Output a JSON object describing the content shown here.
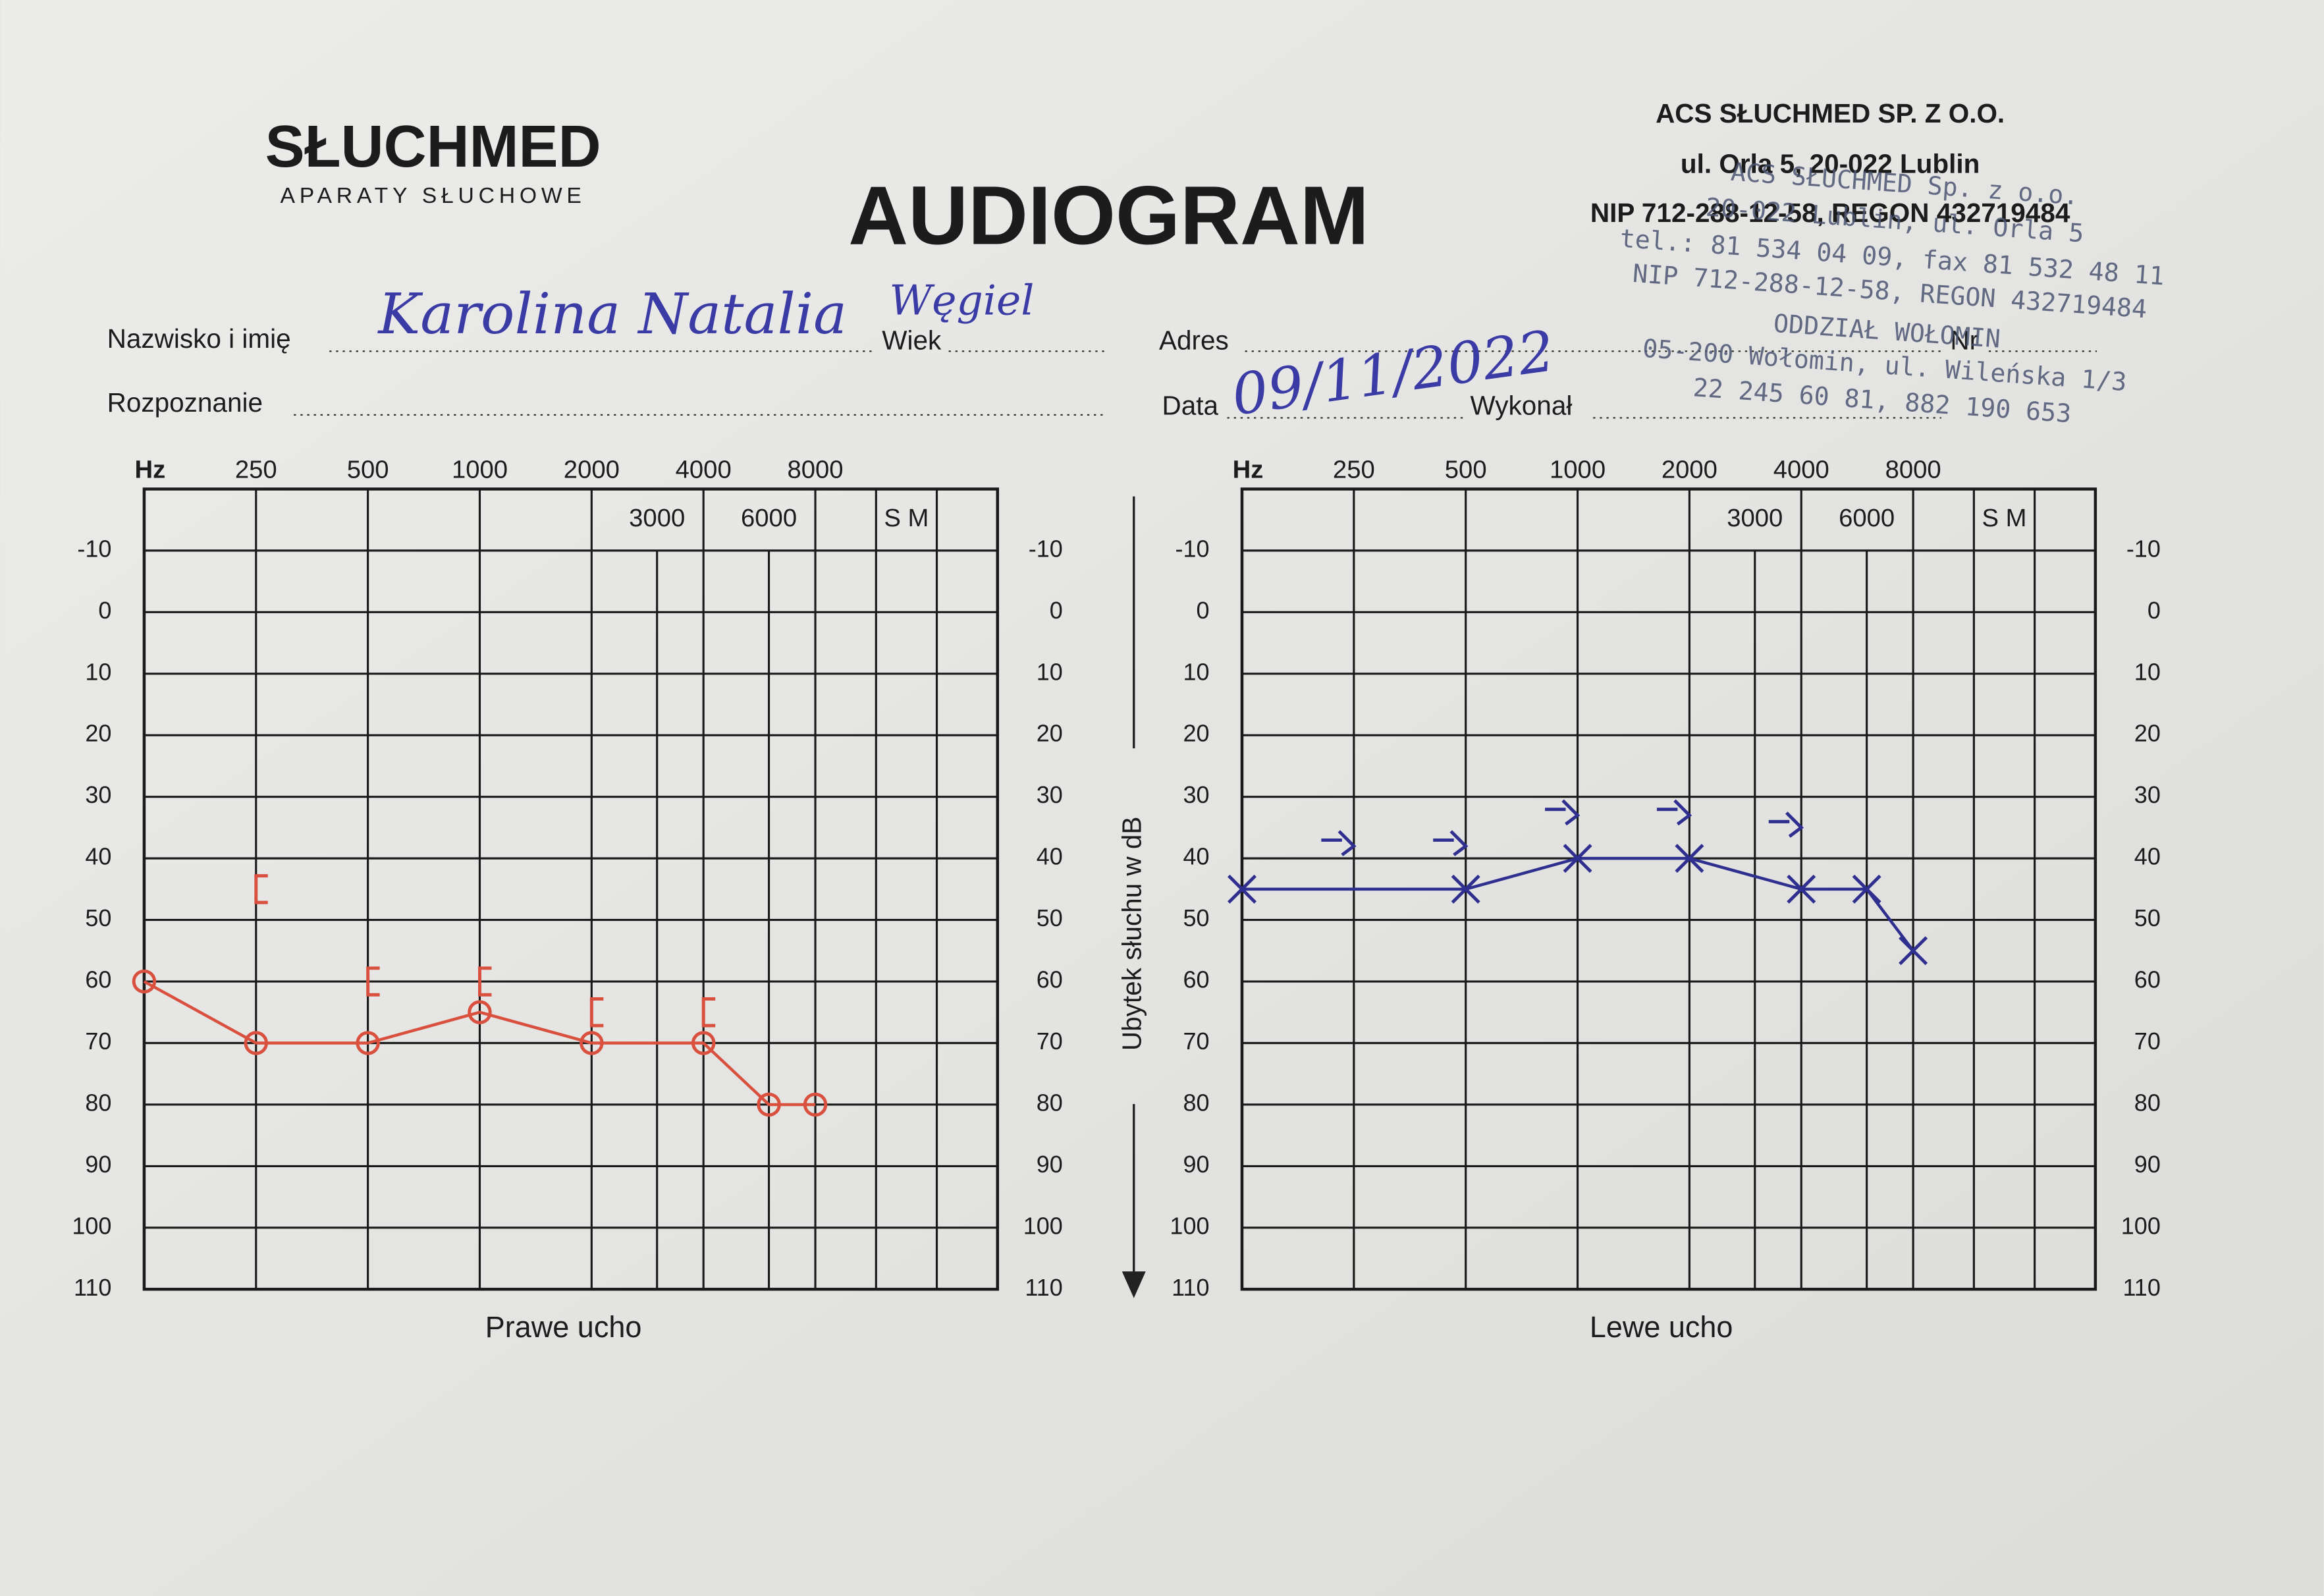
{
  "header": {
    "logo": "SŁUCHMED",
    "logo_sub": "APARATY SŁUCHOWE",
    "title": "AUDIOGRAM",
    "company": [
      "ACS SŁUCHMED SP. Z O.O.",
      "ul. Orla 5, 20-022 Lublin",
      "NIP 712-288-12-58, REGON 432719484"
    ]
  },
  "form": {
    "name_label": "Nazwisko i imię",
    "name_value": "Karolina Natalia",
    "age_label": "Wiek",
    "age_value": "Węgiel",
    "address_label": "Adres",
    "number_label": "Nr",
    "diagnosis_label": "Rozpoznanie",
    "date_label": "Data",
    "date_value": "09/11/2022",
    "performed_label": "Wykonał"
  },
  "stamp": [
    "ACS SŁUCHMED Sp. z o.o.",
    "20-022 Lublin, ul. Orla 5",
    "tel.: 81 534 04 09, fax 81 532 48 11",
    "NIP 712-288-12-58, REGON 432719484",
    "ODDZIAŁ WOŁOMIN",
    "05-200 Wołomin, ul. Wileńska 1/3",
    "22 245 60 81, 882 190 653"
  ],
  "y_axis_label": "Ubytek słuchu w dB",
  "chart_data": [
    {
      "type": "audiogram",
      "title": "Prawe ucho",
      "x_unit": "Hz",
      "sm_label": "S M",
      "log_x": true,
      "xlim": [
        125,
        8000
      ],
      "xticks": [
        250,
        500,
        1000,
        2000,
        3000,
        4000,
        6000,
        8000
      ],
      "ylim": [
        -20,
        110
      ],
      "y_inverted": true,
      "yticks": [
        -10,
        0,
        10,
        20,
        30,
        40,
        50,
        60,
        70,
        80,
        90,
        100,
        110
      ],
      "grid": true,
      "series": [
        {
          "color": "#d9503f",
          "marker": "o",
          "line": true,
          "x": [
            125,
            250,
            500,
            1000,
            2000,
            4000,
            6000,
            8000
          ],
          "values": [
            60,
            70,
            70,
            65,
            70,
            70,
            80,
            80
          ]
        },
        {
          "color": "#d9503f",
          "marker": "[",
          "line": false,
          "x": [
            250,
            500,
            1000,
            2000,
            4000
          ],
          "values": [
            45,
            60,
            60,
            65,
            65
          ]
        }
      ]
    },
    {
      "type": "audiogram",
      "title": "Lewe ucho",
      "x_unit": "Hz",
      "sm_label": "S M",
      "log_x": true,
      "xlim": [
        125,
        8000
      ],
      "xticks": [
        250,
        500,
        1000,
        2000,
        3000,
        4000,
        6000,
        8000
      ],
      "ylim": [
        -20,
        110
      ],
      "y_inverted": true,
      "yticks": [
        -10,
        0,
        10,
        20,
        30,
        40,
        50,
        60,
        70,
        80,
        90,
        100,
        110
      ],
      "grid": true,
      "series": [
        {
          "color": "#2f2f8f",
          "marker": "x",
          "line": true,
          "x": [
            125,
            500,
            1000,
            2000,
            4000,
            6000,
            8000
          ],
          "values": [
            45,
            45,
            40,
            40,
            45,
            45,
            55
          ]
        },
        {
          "color": "#2f2f8f",
          "marker": ">",
          "line": false,
          "x": [
            250,
            500,
            1000,
            2000,
            4000
          ],
          "values": [
            38,
            38,
            33,
            33,
            35
          ]
        }
      ]
    }
  ]
}
